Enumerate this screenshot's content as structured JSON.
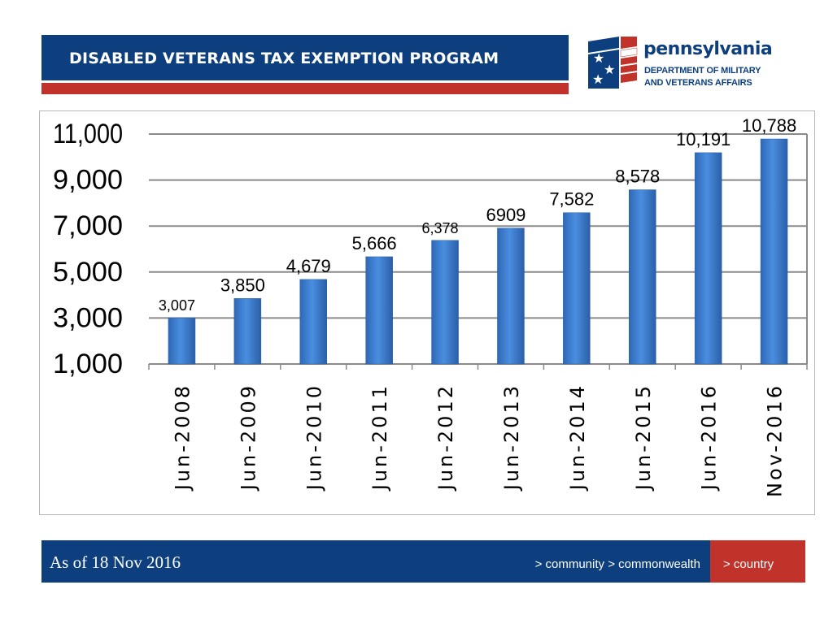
{
  "header": {
    "title": "DISABLED VETERANS TAX EXEMPTION PROGRAM"
  },
  "logo": {
    "brand": "pennsylvania",
    "line1": "DEPARTMENT OF MILITARY",
    "line2": "AND VETERANS AFFAIRS"
  },
  "chart_data": {
    "type": "bar",
    "title": "",
    "xlabel": "",
    "ylabel": "",
    "categories": [
      "Jun-2008",
      "Jun-2009",
      "Jun-2010",
      "Jun-2011",
      "Jun-2012",
      "Jun-2013",
      "Jun-2014",
      "Jun-2015",
      "Jun-2016",
      "Nov-2016"
    ],
    "values": [
      3007,
      3850,
      4679,
      5666,
      6378,
      6909,
      7582,
      8578,
      10191,
      10788
    ],
    "data_labels": [
      "3,007",
      "3,850",
      "4,679",
      "5,666",
      "6,378",
      "6909",
      "7,582",
      "8,578",
      "10,191",
      "10,788"
    ],
    "yticks": [
      1000,
      3000,
      5000,
      7000,
      9000,
      11000
    ],
    "ytick_labels": [
      "1,000",
      "3,000",
      "5,000",
      "7,000",
      "9,000",
      "11,000"
    ],
    "ylim": [
      1000,
      11000
    ],
    "grid": true,
    "bar_color": "#3d7fd1"
  },
  "footer": {
    "as_of": "As of  18 Nov 2016",
    "tagline": "> community > commonwealth",
    "tagline2": "> country"
  }
}
